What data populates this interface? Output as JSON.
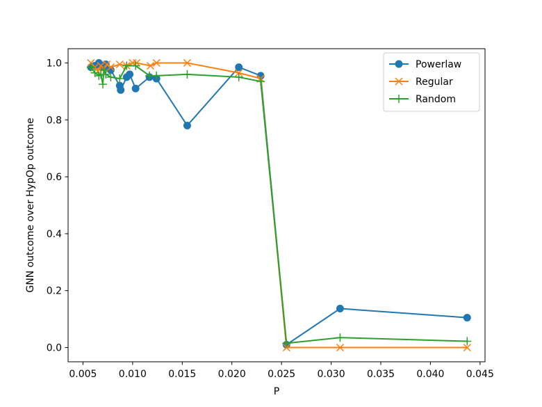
{
  "chart_data": {
    "type": "line",
    "title": "",
    "xlabel": "P",
    "ylabel": "GNN outcome over HypOp outcome",
    "xlim": [
      0.0035,
      0.0455
    ],
    "ylim": [
      -0.05,
      1.05
    ],
    "xticks": [
      "0.005",
      "0.010",
      "0.015",
      "0.020",
      "0.025",
      "0.030",
      "0.035",
      "0.040",
      "0.045"
    ],
    "yticks": [
      "0.0",
      "0.2",
      "0.4",
      "0.6",
      "0.8",
      "1.0"
    ],
    "grid": false,
    "legend_position": "top-right",
    "series": [
      {
        "name": "Powerlaw",
        "color": "#1f77b4",
        "marker": "circle",
        "x": [
          0.0058,
          0.0062,
          0.0066,
          0.0068,
          0.0071,
          0.0073,
          0.0078,
          0.0087,
          0.0088,
          0.0094,
          0.0097,
          0.0103,
          0.0117,
          0.0124,
          0.0155,
          0.0207,
          0.0229,
          0.0255,
          0.0309,
          0.0437
        ],
        "y": [
          0.985,
          0.99,
          1.0,
          0.99,
          0.985,
          0.995,
          0.975,
          0.92,
          0.905,
          0.95,
          0.96,
          0.91,
          0.95,
          0.945,
          0.78,
          0.985,
          0.955,
          0.01,
          0.137,
          0.105
        ]
      },
      {
        "name": "Regular",
        "color": "#ff7f0e",
        "marker": "x",
        "x": [
          0.0058,
          0.0062,
          0.0065,
          0.0068,
          0.0071,
          0.0074,
          0.0078,
          0.0087,
          0.0094,
          0.01,
          0.0104,
          0.0118,
          0.0124,
          0.0155,
          0.0207,
          0.0229,
          0.0255,
          0.0309,
          0.0437
        ],
        "y": [
          1.0,
          0.985,
          0.97,
          0.99,
          0.98,
          0.995,
          0.985,
          0.995,
          0.99,
          1.0,
          1.0,
          0.99,
          1.0,
          1.0,
          0.965,
          0.945,
          0.0,
          0.0,
          0.0
        ]
      },
      {
        "name": "Random",
        "color": "#2ca02c",
        "marker": "plus",
        "x": [
          0.0058,
          0.0062,
          0.0066,
          0.0068,
          0.007,
          0.0071,
          0.0073,
          0.0078,
          0.0087,
          0.0094,
          0.0103,
          0.0117,
          0.0124,
          0.0155,
          0.0207,
          0.0229,
          0.0255,
          0.0309,
          0.0437
        ],
        "y": [
          0.985,
          0.965,
          0.955,
          0.96,
          0.925,
          0.975,
          0.96,
          0.95,
          0.945,
          0.99,
          0.99,
          0.955,
          0.955,
          0.96,
          0.95,
          0.935,
          0.015,
          0.035,
          0.022
        ]
      }
    ]
  }
}
